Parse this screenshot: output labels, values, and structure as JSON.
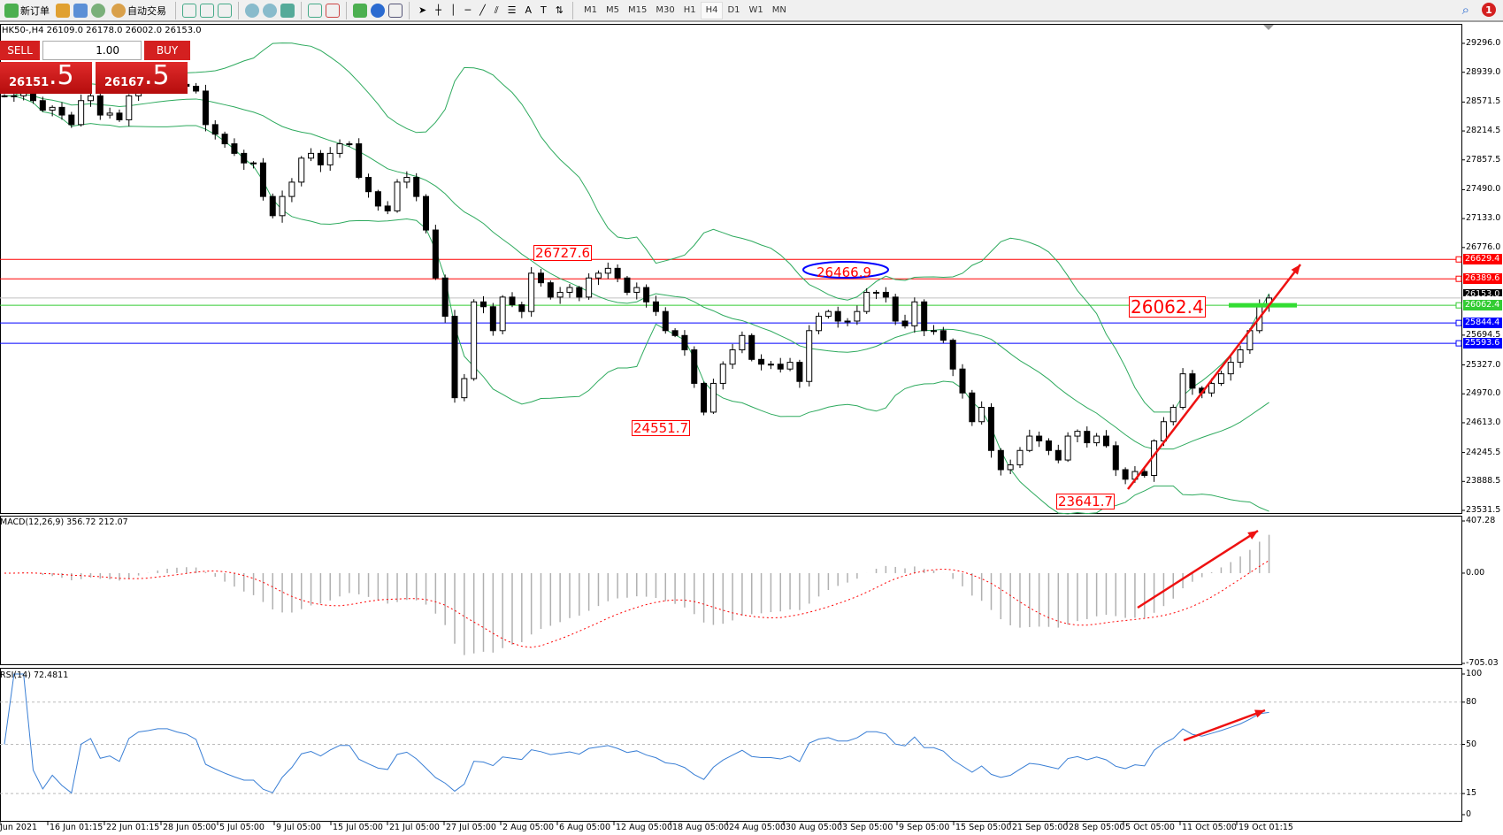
{
  "toolbar": {
    "new_order": "新订单",
    "auto_trading": "自动交易",
    "timeframes": [
      "M1",
      "M5",
      "M15",
      "M30",
      "H1",
      "H4",
      "D1",
      "W1",
      "MN"
    ],
    "active_timeframe": "H4",
    "notification_count": "1"
  },
  "symbol_info": "HK50-,H4  26109.0 26178.0 26002.0 26153.0",
  "trade_panel": {
    "sell_label": "SELL",
    "buy_label": "BUY",
    "lot": "1.00",
    "sell_main": "26151",
    "sell_big": ".5",
    "buy_main": "26167",
    "buy_big": ".5"
  },
  "colors": {
    "candle": "#000000",
    "bands": "#2eaa5e",
    "resistance": "#ff0000",
    "support": "#0000ff",
    "green_level": "#33cc33",
    "macd_hist": "#b0b0b0",
    "macd_signal": "#ff0000",
    "rsi": "#3a7fd5",
    "annotation": "#ff0000"
  },
  "chart_data": {
    "type": "candlestick",
    "symbol": "HK50-",
    "timeframe": "H4",
    "closes": [
      28648,
      28648,
      28707,
      28589,
      28471,
      28506,
      28411,
      28293,
      28589,
      28648,
      28411,
      28435,
      28352,
      28648,
      28766,
      28790,
      28825,
      28825,
      28790,
      28766,
      28707,
      28293,
      28175,
      28056,
      27938,
      27820,
      27820,
      27406,
      27169,
      27406,
      27583,
      27879,
      27938,
      27796,
      27938,
      28056,
      28056,
      27642,
      27465,
      27288,
      27228,
      27583,
      27642,
      27406,
      26992,
      26400,
      25927,
      24922,
      25158,
      26105,
      26045,
      25750,
      26164,
      26069,
      25986,
      26459,
      26341,
      26164,
      26223,
      26282,
      26164,
      26400,
      26459,
      26519,
      26400,
      26223,
      26282,
      26105,
      25986,
      25750,
      25690,
      25513,
      25099,
      24744,
      25099,
      25336,
      25513,
      25690,
      25395,
      25336,
      25336,
      25276,
      25359,
      25123,
      25750,
      25927,
      25986,
      25868,
      25868,
      25986,
      26223,
      26223,
      26164,
      25868,
      25809,
      26105,
      25750,
      25750,
      25631,
      25276,
      24981,
      24626,
      24803,
      24271,
      24034,
      24093,
      24271,
      24448,
      24389,
      24271,
      24153,
      24448,
      24507,
      24366,
      24448,
      24330,
      24034,
      23916,
      24011,
      23963,
      24389,
      24626,
      24803,
      25217,
      25040,
      24981,
      25099,
      25217,
      25359,
      25513,
      25750,
      26069,
      26153
    ],
    "price_ticks": [
      "29296.0",
      "28939.0",
      "28571.5",
      "28214.5",
      "27857.5",
      "27490.0",
      "27133.0",
      "26776.0",
      "25694.5",
      "25327.0",
      "24970.0",
      "24613.0",
      "24245.5",
      "23888.5",
      "23531.5"
    ],
    "price_range": [
      23531.5,
      29296.0
    ],
    "current_price": "26153.0",
    "levels": [
      {
        "value": "26629.4",
        "color": "#ff0000"
      },
      {
        "value": "26389.6",
        "color": "#ff0000"
      },
      {
        "value": "26062.4",
        "color": "#33cc33"
      },
      {
        "value": "25844.4",
        "color": "#0000ff"
      },
      {
        "value": "25593.6",
        "color": "#0000ff"
      }
    ],
    "annotations": [
      "26727.6",
      "26466.9",
      "24551.7",
      "23641.7",
      "26062.4"
    ],
    "time_labels": [
      "Jun 2021",
      "16 Jun 01:15",
      "22 Jun 01:15",
      "28 Jun 05:00",
      "5 Jul 05:00",
      "9 Jul 05:00",
      "15 Jul 05:00",
      "21 Jul 05:00",
      "27 Jul 05:00",
      "2 Aug 05:00",
      "6 Aug 05:00",
      "12 Aug 05:00",
      "18 Aug 05:00",
      "24 Aug 05:00",
      "30 Aug 05:00",
      "3 Sep 05:00",
      "9 Sep 05:00",
      "15 Sep 05:00",
      "21 Sep 05:00",
      "28 Sep 05:00",
      "5 Oct 05:00",
      "11 Oct 05:00",
      "19 Oct 01:15"
    ],
    "bollinger": {
      "period": 20,
      "deviation": 2
    },
    "macd": {
      "label": "MACD(12,26,9) 356.72 212.07",
      "range": [
        -705.03,
        407.28
      ],
      "ticks": [
        "407.28",
        "0.00",
        "-705.03"
      ]
    },
    "rsi": {
      "label": "RSI(14) 72.4811",
      "range": [
        0,
        100
      ],
      "ticks": [
        "100",
        "80",
        "50",
        "15",
        "0"
      ],
      "levels": [
        80,
        50,
        15
      ]
    }
  }
}
